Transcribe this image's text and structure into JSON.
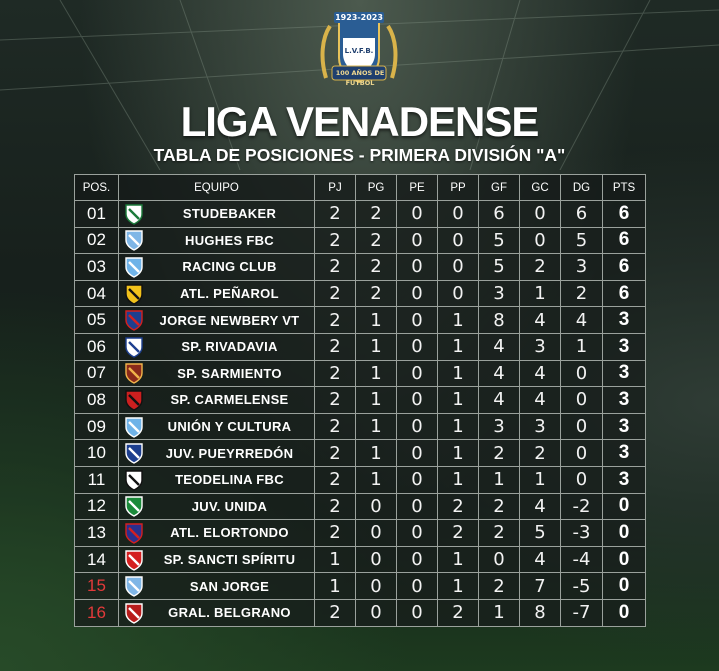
{
  "header": {
    "logo": {
      "years": "1923-2023",
      "initials": "L.V.F.B.",
      "motto": "100 AÑOS DE FUTBOL"
    },
    "title": "LIGA VENADENSE",
    "subtitle": "TABLA DE POSICIONES - PRIMERA DIVISIÓN \"A\""
  },
  "table": {
    "columns": [
      "POS.",
      "EQUIPO",
      "PJ",
      "PG",
      "PE",
      "PP",
      "GF",
      "GC",
      "DG",
      "PTS"
    ],
    "rows": [
      {
        "pos": "01",
        "team": "STUDEBAKER",
        "crest": "studebaker-crest",
        "pj": "2",
        "pg": "2",
        "pe": "0",
        "pp": "0",
        "gf": "6",
        "gc": "0",
        "dg": "6",
        "pts": "6",
        "pos_color": "#ffffff"
      },
      {
        "pos": "02",
        "team": "HUGHES FBC",
        "crest": "hughes-crest",
        "pj": "2",
        "pg": "2",
        "pe": "0",
        "pp": "0",
        "gf": "5",
        "gc": "0",
        "dg": "5",
        "pts": "6",
        "pos_color": "#ffffff"
      },
      {
        "pos": "03",
        "team": "RACING CLUB",
        "crest": "racing-crest",
        "pj": "2",
        "pg": "2",
        "pe": "0",
        "pp": "0",
        "gf": "5",
        "gc": "2",
        "dg": "3",
        "pts": "6",
        "pos_color": "#ffffff"
      },
      {
        "pos": "04",
        "team": "ATL. PEÑAROL",
        "crest": "penarol-crest",
        "pj": "2",
        "pg": "2",
        "pe": "0",
        "pp": "0",
        "gf": "3",
        "gc": "1",
        "dg": "2",
        "pts": "6",
        "pos_color": "#ffffff"
      },
      {
        "pos": "05",
        "team": "JORGE NEWBERY VT",
        "crest": "newbery-crest",
        "pj": "2",
        "pg": "1",
        "pe": "0",
        "pp": "1",
        "gf": "8",
        "gc": "4",
        "dg": "4",
        "pts": "3",
        "pos_color": "#ffffff"
      },
      {
        "pos": "06",
        "team": "SP. RIVADAVIA",
        "crest": "rivadavia-crest",
        "pj": "2",
        "pg": "1",
        "pe": "0",
        "pp": "1",
        "gf": "4",
        "gc": "3",
        "dg": "1",
        "pts": "3",
        "pos_color": "#ffffff"
      },
      {
        "pos": "07",
        "team": "SP. SARMIENTO",
        "crest": "sarmiento-crest",
        "pj": "2",
        "pg": "1",
        "pe": "0",
        "pp": "1",
        "gf": "4",
        "gc": "4",
        "dg": "0",
        "pts": "3",
        "pos_color": "#ffffff"
      },
      {
        "pos": "08",
        "team": "SP. CARMELENSE",
        "crest": "carmelense-crest",
        "pj": "2",
        "pg": "1",
        "pe": "0",
        "pp": "1",
        "gf": "4",
        "gc": "4",
        "dg": "0",
        "pts": "3",
        "pos_color": "#ffffff"
      },
      {
        "pos": "09",
        "team": "UNIÓN Y CULTURA",
        "crest": "union-crest",
        "pj": "2",
        "pg": "1",
        "pe": "0",
        "pp": "1",
        "gf": "3",
        "gc": "3",
        "dg": "0",
        "pts": "3",
        "pos_color": "#ffffff"
      },
      {
        "pos": "10",
        "team": "JUV. PUEYRREDÓN",
        "crest": "pueyrredon-crest",
        "pj": "2",
        "pg": "1",
        "pe": "0",
        "pp": "1",
        "gf": "2",
        "gc": "2",
        "dg": "0",
        "pts": "3",
        "pos_color": "#ffffff"
      },
      {
        "pos": "11",
        "team": "TEODELINA FBC",
        "crest": "teodelina-crest",
        "pj": "2",
        "pg": "1",
        "pe": "0",
        "pp": "1",
        "gf": "1",
        "gc": "1",
        "dg": "0",
        "pts": "3",
        "pos_color": "#ffffff"
      },
      {
        "pos": "12",
        "team": "JUV. UNIDA",
        "crest": "unida-crest",
        "pj": "2",
        "pg": "0",
        "pe": "0",
        "pp": "2",
        "gf": "2",
        "gc": "4",
        "dg": "-2",
        "pts": "0",
        "pos_color": "#ffffff"
      },
      {
        "pos": "13",
        "team": "ATL. ELORTONDO",
        "crest": "elortondo-crest",
        "pj": "2",
        "pg": "0",
        "pe": "0",
        "pp": "2",
        "gf": "2",
        "gc": "5",
        "dg": "-3",
        "pts": "0",
        "pos_color": "#ffffff"
      },
      {
        "pos": "14",
        "team": "SP. SANCTI SPÍRITU",
        "crest": "sancti-crest",
        "pj": "1",
        "pg": "0",
        "pe": "0",
        "pp": "1",
        "gf": "0",
        "gc": "4",
        "dg": "-4",
        "pts": "0",
        "pos_color": "#ffffff"
      },
      {
        "pos": "15",
        "team": "SAN JORGE",
        "crest": "sanjorge-crest",
        "pj": "1",
        "pg": "0",
        "pe": "0",
        "pp": "1",
        "gf": "2",
        "gc": "7",
        "dg": "-5",
        "pts": "0",
        "pos_color": "#e23a3a"
      },
      {
        "pos": "16",
        "team": "GRAL. BELGRANO",
        "crest": "belgrano-crest",
        "pj": "2",
        "pg": "0",
        "pe": "0",
        "pp": "2",
        "gf": "1",
        "gc": "8",
        "dg": "-7",
        "pts": "0",
        "pos_color": "#e23a3a"
      }
    ]
  },
  "crest_colors": {
    "studebaker-crest": [
      "#ffffff",
      "#1b7a3a"
    ],
    "hughes-crest": [
      "#7fb6e6",
      "#ffffff"
    ],
    "racing-crest": [
      "#6fb3e8",
      "#ffffff"
    ],
    "penarol-crest": [
      "#f2c21b",
      "#111111"
    ],
    "newbery-crest": [
      "#1d3f8f",
      "#d42020"
    ],
    "rivadavia-crest": [
      "#ffffff",
      "#1d3f8f"
    ],
    "sarmiento-crest": [
      "#8a2a1a",
      "#f1b44a"
    ],
    "carmelense-crest": [
      "#cc1f1f",
      "#111111"
    ],
    "union-crest": [
      "#6fb3e8",
      "#ffffff"
    ],
    "pueyrredon-crest": [
      "#1d3f8f",
      "#ffffff"
    ],
    "teodelina-crest": [
      "#ffffff",
      "#111111"
    ],
    "unida-crest": [
      "#1b8a3a",
      "#ffffff"
    ],
    "elortondo-crest": [
      "#2a2f8f",
      "#d42020"
    ],
    "sancti-crest": [
      "#d42020",
      "#ffffff"
    ],
    "sanjorge-crest": [
      "#7fb6e6",
      "#ffffff"
    ],
    "belgrano-crest": [
      "#b81c1c",
      "#ffffff"
    ]
  }
}
